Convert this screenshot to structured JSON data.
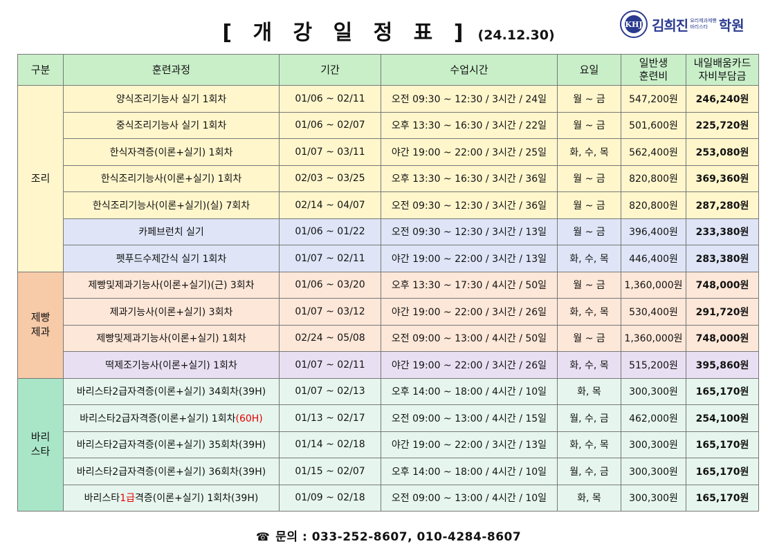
{
  "header": {
    "title": "[ 개 강 일 정 표 ]",
    "date": "(24.12.30)",
    "logo": {
      "seal_text": "KHJ",
      "name": "김희진",
      "sub1": "요리제과제빵",
      "sub2": "바리스타",
      "suffix": "학원"
    }
  },
  "table": {
    "headers": {
      "category": "구분",
      "course": "훈련과정",
      "period": "기간",
      "time": "수업시간",
      "days": "요일",
      "fee_line1": "일반생",
      "fee_line2": "훈련비",
      "support_line1": "내일배움카드",
      "support_line2": "자비부담금"
    },
    "categories": [
      {
        "label_line1": "조리",
        "label_line2": ""
      },
      {
        "label_line1": "제빵",
        "label_line2": "제과"
      },
      {
        "label_line1": "바리",
        "label_line2": "스타"
      }
    ],
    "rows": [
      {
        "course": "양식조리기능사 실기 1회차",
        "period": "01/06 ~ 02/11",
        "time": "오전 09:30 ~ 12:30 / 3시간 / 24일",
        "days": "월 ~ 금",
        "fee": "547,200원",
        "support": "246,240원"
      },
      {
        "course": "중식조리기능사 실기 1회차",
        "period": "01/06 ~ 02/07",
        "time": "오후 13:30 ~ 16:30 / 3시간 / 22일",
        "days": "월 ~ 금",
        "fee": "501,600원",
        "support": "225,720원"
      },
      {
        "course": "한식자격증(이론+실기) 1회차",
        "period": "01/07 ~ 03/11",
        "time": "야간 19:00 ~ 22:00 / 3시간 / 25일",
        "days": "화, 수, 목",
        "fee": "562,400원",
        "support": "253,080원"
      },
      {
        "course": "한식조리기능사(이론+실기) 1회차",
        "period": "02/03 ~ 03/25",
        "time": "오후 13:30 ~ 16:30 / 3시간 / 36일",
        "days": "월 ~ 금",
        "fee": "820,800원",
        "support": "369,360원"
      },
      {
        "course": "한식조리기능사(이론+실기)(실) 7회차",
        "period": "02/14 ~ 04/07",
        "time": "오전 09:30 ~ 12:30 / 3시간 / 36일",
        "days": "월 ~ 금",
        "fee": "820,800원",
        "support": "287,280원"
      },
      {
        "course": "카페브런치 실기",
        "period": "01/06 ~ 01/22",
        "time": "오전 09:30 ~ 12:30 / 3시간 / 13일",
        "days": "월 ~ 금",
        "fee": "396,400원",
        "support": "233,380원"
      },
      {
        "course": "펫푸드수제간식 실기 1회차",
        "period": "01/07 ~ 02/11",
        "time": "야간 19:00 ~ 22:00 / 3시간 / 13일",
        "days": "화, 수, 목",
        "fee": "446,400원",
        "support": "283,380원"
      },
      {
        "course": "제빵및제과기능사(이론+실기)(근) 3회차",
        "period": "01/06 ~ 03/20",
        "time": "오후 13:30 ~ 17:30 / 4시간 / 50일",
        "days": "월 ~ 금",
        "fee": "1,360,000원",
        "support": "748,000원"
      },
      {
        "course": "제과기능사(이론+실기) 3회차",
        "period": "01/07 ~ 03/12",
        "time": "야간 19:00 ~ 22:00 / 3시간 / 26일",
        "days": "화, 수, 목",
        "fee": "530,400원",
        "support": "291,720원"
      },
      {
        "course": "제빵및제과기능사(이론+실기) 1회차",
        "period": "02/24 ~ 05/08",
        "time": "오전 09:00 ~ 13:00 / 4시간 / 50일",
        "days": "월 ~ 금",
        "fee": "1,360,000원",
        "support": "748,000원"
      },
      {
        "course": "떡제조기능사(이론+실기) 1회차",
        "period": "01/07 ~ 02/11",
        "time": "야간 19:00 ~ 22:00 / 3시간 / 26일",
        "days": "화, 수, 목",
        "fee": "515,200원",
        "support": "395,860원"
      },
      {
        "course": "바리스타2급자격증(이론+실기) 34회차(39H)",
        "period": "01/07 ~ 02/13",
        "time": "오후 14:00 ~ 18:00 / 4시간 / 10일",
        "days": "화, 목",
        "fee": "300,300원",
        "support": "165,170원"
      },
      {
        "course_main": "바리스타2급자격증(이론+실기) 1회차",
        "course_hl": "(60H)",
        "period": "01/13 ~ 02/17",
        "time": "오전 09:00 ~ 13:00 / 4시간 / 15일",
        "days": "월, 수, 금",
        "fee": "462,000원",
        "support": "254,100원"
      },
      {
        "course": "바리스타2급자격증(이론+실기) 35회차(39H)",
        "period": "01/14 ~ 02/18",
        "time": "야간 19:00 ~ 22:00 / 3시간 / 13일",
        "days": "화, 수, 목",
        "fee": "300,300원",
        "support": "165,170원"
      },
      {
        "course": "바리스타2급자격증(이론+실기) 36회차(39H)",
        "period": "01/15 ~ 02/07",
        "time": "오후 14:00 ~ 18:00 / 4시간 / 10일",
        "days": "월, 수, 금",
        "fee": "300,300원",
        "support": "165,170원"
      },
      {
        "course_pre": "바리스타",
        "course_hl": "1급",
        "course_post": "격증(이론+실기) 1회차(39H)",
        "period": "01/09 ~ 02/18",
        "time": "오전 09:00 ~ 13:00 / 4시간 / 10일",
        "days": "화, 목",
        "fee": "300,300원",
        "support": "165,170원"
      }
    ]
  },
  "footer": {
    "icon": "telephone-icon",
    "label": "문의",
    "sep": ":",
    "phones": "033-252-8607, 010-4284-8607"
  },
  "colors": {
    "header_bg": "#c9efc9",
    "highlight": "#e10000",
    "brand": "#2a3a8f"
  }
}
